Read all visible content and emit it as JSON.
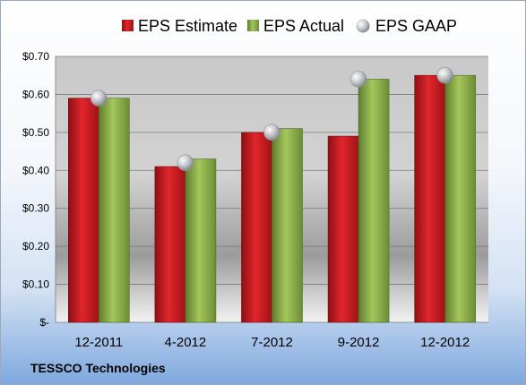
{
  "chart_data": {
    "type": "bar",
    "categories": [
      "12-2011",
      "4-2012",
      "7-2012",
      "9-2012",
      "12-2012"
    ],
    "series": [
      {
        "name": "EPS Estimate",
        "kind": "bar",
        "color": "#c0161c",
        "values": [
          0.59,
          0.41,
          0.5,
          0.49,
          0.65
        ]
      },
      {
        "name": "EPS Actual",
        "kind": "bar",
        "color": "#8cad4a",
        "values": [
          0.59,
          0.43,
          0.51,
          0.64,
          0.65
        ]
      },
      {
        "name": "EPS GAAP",
        "kind": "marker",
        "color": "#b8bcc4",
        "values": [
          0.59,
          0.42,
          0.5,
          0.64,
          0.65
        ]
      }
    ],
    "ylim": [
      0,
      0.7
    ],
    "yticks": [
      0,
      0.1,
      0.2,
      0.3,
      0.4,
      0.5,
      0.6,
      0.7
    ],
    "ytick_labels": [
      "$-",
      "$0.10",
      "$0.20",
      "$0.30",
      "$0.40",
      "$0.50",
      "$0.60",
      "$0.70"
    ],
    "grid": true,
    "legend_position": "top",
    "footer": "TESSCO Technologies"
  }
}
